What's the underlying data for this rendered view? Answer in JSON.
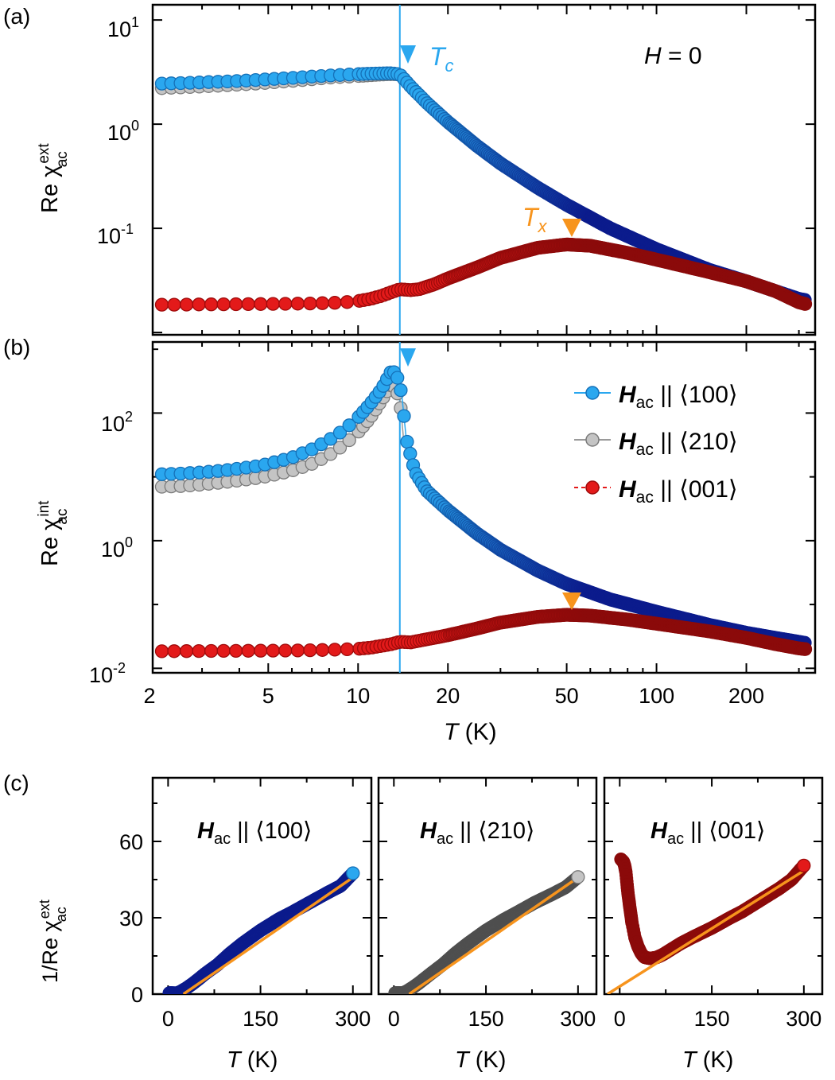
{
  "figure": {
    "panel_labels": [
      "(a)",
      "(b)",
      "(c)"
    ],
    "marker_colors": {
      "blue_fill": "#2aa7ef",
      "blue_edge": "#1570b8",
      "dark_blue": "#0b1b8c",
      "gray_fill": "#c4c4c4",
      "gray_edge": "#7a7a7a",
      "dark_gray": "#4f4f4f",
      "red_fill": "#e31a1a",
      "red_edge": "#9e0a0a",
      "dark_red": "#8b0a0a",
      "orange": "#f7941d",
      "tc_line": "#2aa7ef"
    }
  },
  "chart_data": [
    {
      "id": "panel-a",
      "type": "scatter",
      "xscale": "log",
      "yscale": "log",
      "xlim": [
        2.05,
        340
      ],
      "ylim": [
        0.0095,
        14
      ],
      "ylabel_main": "Re χ",
      "ylabel_sup": "ext",
      "ylabel_sub": "ac",
      "yticks": [
        {
          "base": "10",
          "exp": "1",
          "value": 10
        },
        {
          "base": "10",
          "exp": "0",
          "value": 1
        },
        {
          "base": "10",
          "exp": "-1",
          "value": 0.1
        }
      ],
      "annotation_field": {
        "sym": "H",
        "rest": " = 0"
      },
      "tc_marker": {
        "sym": "T",
        "sub": "c",
        "x": 13.8
      },
      "tx_marker": {
        "sym": "T",
        "sub": "x",
        "x": 50
      },
      "series": [
        {
          "name": "Hac || ⟨210⟩ (ext)",
          "color": "gray",
          "points": [
            [
              2.2,
              2.22
            ],
            [
              2.4,
              2.24
            ],
            [
              2.6,
              2.26
            ],
            [
              3,
              2.3
            ],
            [
              3.5,
              2.35
            ],
            [
              4,
              2.4
            ],
            [
              4.5,
              2.45
            ],
            [
              5,
              2.5
            ],
            [
              6,
              2.6
            ],
            [
              7,
              2.7
            ],
            [
              8,
              2.8
            ],
            [
              9,
              2.85
            ],
            [
              10,
              2.9
            ],
            [
              11,
              2.95
            ],
            [
              12,
              3.0
            ],
            [
              13,
              3.02
            ],
            [
              13.8,
              3.0
            ]
          ]
        },
        {
          "name": "Hac || ⟨100⟩ (ext)",
          "color": "blue",
          "points": [
            [
              2.2,
              2.45
            ],
            [
              2.4,
              2.47
            ],
            [
              2.6,
              2.48
            ],
            [
              3,
              2.52
            ],
            [
              3.5,
              2.56
            ],
            [
              4,
              2.6
            ],
            [
              4.5,
              2.65
            ],
            [
              5,
              2.7
            ],
            [
              6,
              2.78
            ],
            [
              7,
              2.86
            ],
            [
              8,
              2.93
            ],
            [
              9,
              2.98
            ],
            [
              10,
              3.02
            ],
            [
              11,
              3.05
            ],
            [
              12,
              3.07
            ],
            [
              13,
              3.08
            ],
            [
              13.8,
              3.0
            ],
            [
              15,
              2.3
            ],
            [
              17,
              1.6
            ],
            [
              20,
              1.05
            ],
            [
              25,
              0.62
            ],
            [
              30,
              0.42
            ],
            [
              40,
              0.245
            ],
            [
              50,
              0.168
            ],
            [
              70,
              0.1
            ],
            [
              100,
              0.063
            ],
            [
              150,
              0.04
            ],
            [
              200,
              0.031
            ],
            [
              250,
              0.025
            ],
            [
              300,
              0.021
            ],
            [
              315,
              0.0205
            ]
          ]
        },
        {
          "name": "Hac || ⟨001⟩ (ext)",
          "color": "red",
          "points": [
            [
              2.2,
              0.0185
            ],
            [
              2.6,
              0.0185
            ],
            [
              3,
              0.0186
            ],
            [
              4,
              0.0187
            ],
            [
              5,
              0.0188
            ],
            [
              6,
              0.0189
            ],
            [
              7,
              0.019
            ],
            [
              8,
              0.0192
            ],
            [
              9,
              0.0195
            ],
            [
              10,
              0.02
            ],
            [
              11,
              0.021
            ],
            [
              12,
              0.0225
            ],
            [
              13,
              0.0245
            ],
            [
              13.8,
              0.026
            ],
            [
              15,
              0.0255
            ],
            [
              16,
              0.026
            ],
            [
              18,
              0.029
            ],
            [
              20,
              0.033
            ],
            [
              25,
              0.042
            ],
            [
              30,
              0.052
            ],
            [
              40,
              0.065
            ],
            [
              50,
              0.07
            ],
            [
              60,
              0.068
            ],
            [
              80,
              0.058
            ],
            [
              100,
              0.05
            ],
            [
              150,
              0.038
            ],
            [
              200,
              0.031
            ],
            [
              250,
              0.025
            ],
            [
              300,
              0.0195
            ],
            [
              315,
              0.0188
            ]
          ]
        }
      ]
    },
    {
      "id": "panel-b",
      "type": "scatter",
      "xscale": "log",
      "yscale": "log",
      "xlim": [
        2.05,
        340
      ],
      "ylim": [
        0.0085,
        1300
      ],
      "xticks": [
        "2",
        "5",
        "10",
        "20",
        "50",
        "100",
        "200"
      ],
      "xtick_values": [
        2,
        5,
        10,
        20,
        50,
        100,
        200
      ],
      "xlabel_sym": "T",
      "xlabel_unit": " (K)",
      "ylabel_main": "Re χ",
      "ylabel_sup": "int",
      "ylabel_sub": "ac",
      "yticks": [
        {
          "base": "10",
          "exp": "2",
          "value": 100
        },
        {
          "base": "10",
          "exp": "0",
          "value": 1
        },
        {
          "base": "10",
          "exp": "-2",
          "value": 0.01
        }
      ],
      "legend": [
        {
          "sym": "H",
          "sub": "ac",
          "rest": " || ⟨100⟩",
          "color": "blue"
        },
        {
          "sym": "H",
          "sub": "ac",
          "rest": " || ⟨210⟩",
          "color": "gray"
        },
        {
          "sym": "H",
          "sub": "ac",
          "rest": " || ⟨001⟩",
          "color": "red"
        }
      ],
      "series": [
        {
          "name": "Hac || ⟨210⟩ (int)",
          "color": "gray",
          "points": [
            [
              2.2,
              7
            ],
            [
              2.6,
              7.2
            ],
            [
              3,
              7.6
            ],
            [
              3.5,
              8.2
            ],
            [
              4,
              8.8
            ],
            [
              4.5,
              9.5
            ],
            [
              5,
              10.3
            ],
            [
              6,
              12.5
            ],
            [
              7,
              16
            ],
            [
              8,
              22
            ],
            [
              9,
              32
            ],
            [
              10,
              50
            ],
            [
              11,
              85
            ],
            [
              12,
              160
            ],
            [
              13,
              300
            ],
            [
              13.8,
              170
            ],
            [
              14.2,
              40
            ]
          ]
        },
        {
          "name": "Hac || ⟨100⟩ (int)",
          "color": "blue",
          "points": [
            [
              2.2,
              11
            ],
            [
              2.6,
              11.3
            ],
            [
              3,
              11.8
            ],
            [
              3.5,
              12.5
            ],
            [
              4,
              13.5
            ],
            [
              4.5,
              14.5
            ],
            [
              5,
              16
            ],
            [
              6,
              20
            ],
            [
              7,
              27
            ],
            [
              8,
              38
            ],
            [
              9,
              55
            ],
            [
              10,
              85
            ],
            [
              11,
              140
            ],
            [
              12,
              240
            ],
            [
              13,
              480
            ],
            [
              13.5,
              380
            ],
            [
              14,
              200
            ],
            [
              14.5,
              40
            ],
            [
              15.5,
              12
            ],
            [
              17,
              6
            ],
            [
              20,
              3
            ],
            [
              25,
              1.3
            ],
            [
              30,
              0.72
            ],
            [
              40,
              0.34
            ],
            [
              50,
              0.21
            ],
            [
              70,
              0.12
            ],
            [
              100,
              0.077
            ],
            [
              150,
              0.048
            ],
            [
              200,
              0.036
            ],
            [
              250,
              0.03
            ],
            [
              300,
              0.026
            ],
            [
              315,
              0.025
            ]
          ]
        },
        {
          "name": "Hac || ⟨001⟩ (int)",
          "color": "red",
          "points": [
            [
              2.2,
              0.0185
            ],
            [
              2.6,
              0.0186
            ],
            [
              3,
              0.0187
            ],
            [
              4,
              0.0188
            ],
            [
              5,
              0.0189
            ],
            [
              6,
              0.019
            ],
            [
              7,
              0.0192
            ],
            [
              8,
              0.0195
            ],
            [
              9,
              0.0198
            ],
            [
              10,
              0.0202
            ],
            [
              11,
              0.021
            ],
            [
              12,
              0.0225
            ],
            [
              13,
              0.024
            ],
            [
              13.8,
              0.026
            ],
            [
              15,
              0.0255
            ],
            [
              18,
              0.03
            ],
            [
              20,
              0.033
            ],
            [
              25,
              0.042
            ],
            [
              30,
              0.052
            ],
            [
              40,
              0.064
            ],
            [
              50,
              0.069
            ],
            [
              60,
              0.067
            ],
            [
              80,
              0.058
            ],
            [
              100,
              0.05
            ],
            [
              150,
              0.038
            ],
            [
              200,
              0.03
            ],
            [
              250,
              0.024
            ],
            [
              300,
              0.0205
            ],
            [
              315,
              0.02
            ]
          ]
        }
      ]
    },
    {
      "id": "panel-c1",
      "type": "scatter",
      "xlim": [
        -25,
        330
      ],
      "ylim": [
        0,
        85
      ],
      "xticks": [
        "0",
        "150",
        "300"
      ],
      "xtick_values": [
        0,
        150,
        300
      ],
      "yticks": [
        "0",
        "30",
        "60"
      ],
      "ytick_values": [
        0,
        30,
        60
      ],
      "ylabel_main": "1/Re χ",
      "ylabel_sup": "ext",
      "ylabel_sub": "ac",
      "xlabel_sym": "T",
      "xlabel_unit": " (K)",
      "title": {
        "sym": "H",
        "sub": "ac",
        "rest": " || ⟨100⟩"
      },
      "color": "blue",
      "points": [
        [
          2,
          0.41
        ],
        [
          5,
          0.4
        ],
        [
          10,
          0.37
        ],
        [
          13.8,
          0.33
        ],
        [
          20,
          0.95
        ],
        [
          30,
          2.4
        ],
        [
          40,
          4.1
        ],
        [
          50,
          6
        ],
        [
          60,
          8
        ],
        [
          80,
          11.5
        ],
        [
          100,
          15.9
        ],
        [
          120,
          19.8
        ],
        [
          150,
          25
        ],
        [
          180,
          29.5
        ],
        [
          200,
          32
        ],
        [
          230,
          36
        ],
        [
          260,
          40
        ],
        [
          280,
          42.5
        ],
        [
          300,
          47.5
        ]
      ],
      "fit": {
        "x": [
          25,
          298
        ],
        "y": [
          0,
          45.5
        ]
      }
    },
    {
      "id": "panel-c2",
      "type": "scatter",
      "xlim": [
        -25,
        330
      ],
      "ylim": [
        0,
        85
      ],
      "xticks": [
        "0",
        "150",
        "300"
      ],
      "xtick_values": [
        0,
        150,
        300
      ],
      "xlabel_sym": "T",
      "xlabel_unit": " (K)",
      "title": {
        "sym": "H",
        "sub": "ac",
        "rest": " || ⟨210⟩"
      },
      "color": "gray",
      "points": [
        [
          2,
          0.44
        ],
        [
          5,
          0.43
        ],
        [
          10,
          0.4
        ],
        [
          13.8,
          0.34
        ],
        [
          20,
          1.0
        ],
        [
          30,
          2.5
        ],
        [
          40,
          4.2
        ],
        [
          50,
          6.1
        ],
        [
          60,
          8
        ],
        [
          80,
          11.7
        ],
        [
          100,
          16
        ],
        [
          120,
          19.8
        ],
        [
          150,
          25
        ],
        [
          180,
          29.4
        ],
        [
          200,
          32
        ],
        [
          230,
          36
        ],
        [
          260,
          39.5
        ],
        [
          280,
          42
        ],
        [
          300,
          46
        ]
      ],
      "fit": {
        "x": [
          25,
          298
        ],
        "y": [
          0,
          45.5
        ]
      }
    },
    {
      "id": "panel-c3",
      "type": "scatter",
      "xlim": [
        -25,
        330
      ],
      "ylim": [
        0,
        85
      ],
      "xticks": [
        "0",
        "150",
        "300"
      ],
      "xtick_values": [
        0,
        150,
        300
      ],
      "xlabel_sym": "T",
      "xlabel_unit": " (K)",
      "title": {
        "sym": "H",
        "sub": "ac",
        "rest": " || ⟨001⟩"
      },
      "color": "red",
      "points": [
        [
          2,
          53
        ],
        [
          4,
          52.5
        ],
        [
          6,
          52
        ],
        [
          8,
          50.5
        ],
        [
          10,
          48
        ],
        [
          12,
          43
        ],
        [
          13.8,
          39
        ],
        [
          16,
          35
        ],
        [
          20,
          28
        ],
        [
          25,
          22
        ],
        [
          30,
          18.5
        ],
        [
          35,
          16
        ],
        [
          40,
          14.5
        ],
        [
          45,
          14.2
        ],
        [
          50,
          14
        ],
        [
          60,
          14.4
        ],
        [
          70,
          15.5
        ],
        [
          80,
          17
        ],
        [
          100,
          20
        ],
        [
          120,
          22.5
        ],
        [
          150,
          26
        ],
        [
          180,
          30
        ],
        [
          200,
          32.5
        ],
        [
          230,
          37
        ],
        [
          260,
          41.5
        ],
        [
          280,
          45
        ],
        [
          300,
          50.5
        ]
      ],
      "fit": {
        "x": [
          -20,
          300
        ],
        "y": [
          0,
          48.5
        ]
      }
    }
  ]
}
